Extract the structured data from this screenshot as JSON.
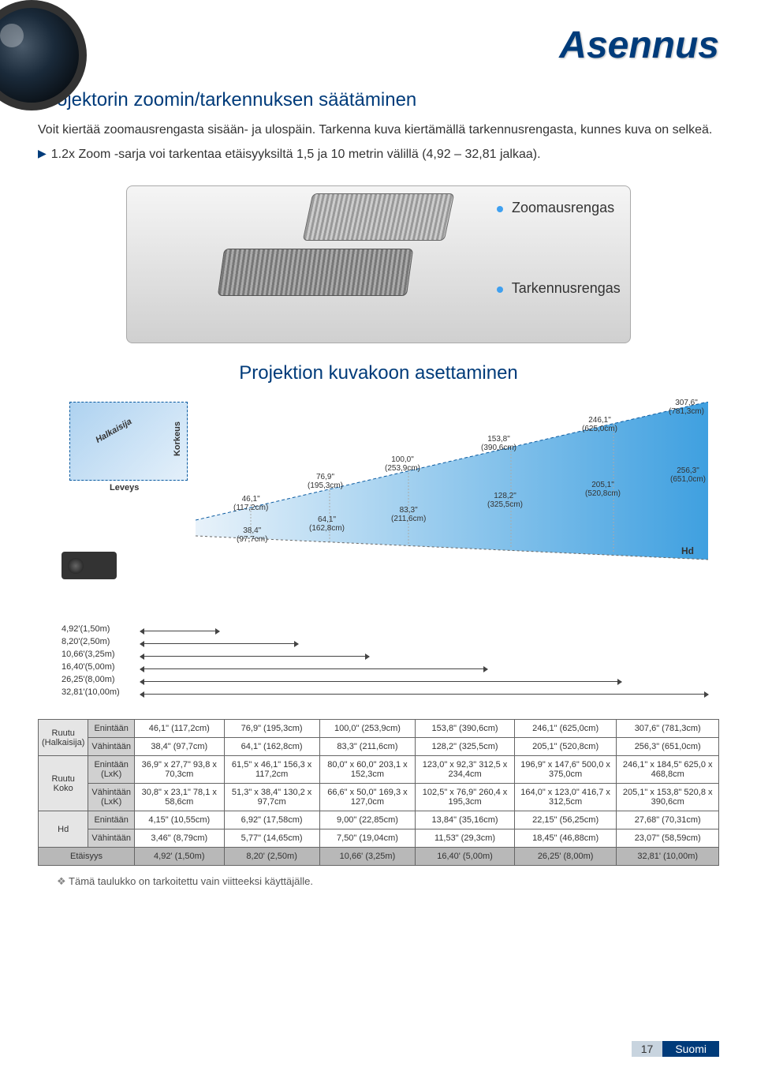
{
  "page": {
    "title": "Asennus",
    "subtitle": "Projektorin  zoomin/tarkennuksen säätäminen",
    "body": "Voit kiertää zoomausrengasta sisään- ja ulospäin. Tarkenna kuva kiertämällä tarkennusrengasta, kunnes kuva on selkeä.",
    "note": "1.2x Zoom -sarja voi tarkentaa etäisyyksiltä 1,5 ja 10 metrin välillä (4,92 – 32,81 jalkaa).",
    "zoom_label": "Zoomausrengas",
    "focus_label": "Tarkennusrengas",
    "section2": "Projektion kuvakoon asettaminen",
    "footnote": "Tämä taulukko on tarkoitettu vain viitteeksi käyttäjälle.",
    "page_num": "17",
    "lang": "Suomi"
  },
  "screen_labels": {
    "diag": "Halkaisija",
    "height": "Korkeus",
    "width": "Leveys",
    "hd": "Hd"
  },
  "beam_values": {
    "top": [
      {
        "v1": "46,1\"",
        "v2": "(117,2cm)"
      },
      {
        "v1": "76,9\"",
        "v2": "(195,3cm)"
      },
      {
        "v1": "100,0\"",
        "v2": "(253,9cm)"
      },
      {
        "v1": "153,8\"",
        "v2": "(390,6cm)"
      },
      {
        "v1": "246,1\"",
        "v2": "(625,0cm)"
      },
      {
        "v1": "307,6\"",
        "v2": "(781,3cm)"
      }
    ],
    "bottom": [
      {
        "v1": "38,4\"",
        "v2": "(97,7cm)"
      },
      {
        "v1": "64,1\"",
        "v2": "(162,8cm)"
      },
      {
        "v1": "83,3\"",
        "v2": "(211,6cm)"
      },
      {
        "v1": "128,2\"",
        "v2": "(325,5cm)"
      },
      {
        "v1": "205,1\"",
        "v2": "(520,8cm)"
      },
      {
        "v1": "256,3\"",
        "v2": "(651,0cm)"
      }
    ]
  },
  "distances": [
    {
      "label": "4,92'(1,50m)",
      "len": 100
    },
    {
      "label": "8,20'(2,50m)",
      "len": 200
    },
    {
      "label": "10,66'(3,25m)",
      "len": 290
    },
    {
      "label": "16,40'(5,00m)",
      "len": 440
    },
    {
      "label": "26,25'(8,00m)",
      "len": 610
    },
    {
      "label": "32,81'(10,00m)",
      "len": 720
    }
  ],
  "table": {
    "row_groups": [
      {
        "label": "Ruutu (Halkaisija)",
        "sub": [
          {
            "h": "Enintään",
            "cells": [
              "46,1\" (117,2cm)",
              "76,9\" (195,3cm)",
              "100,0\" (253,9cm)",
              "153,8\" (390,6cm)",
              "246,1\" (625,0cm)",
              "307,6\" (781,3cm)"
            ]
          },
          {
            "h": "Vähintään",
            "cells": [
              "38,4\" (97,7cm)",
              "64,1\" (162,8cm)",
              "83,3\" (211,6cm)",
              "128,2\" (325,5cm)",
              "205,1\" (520,8cm)",
              "256,3\" (651,0cm)"
            ]
          }
        ]
      },
      {
        "label": "Ruutu Koko",
        "sub": [
          {
            "h": "Enintään (LxK)",
            "cells": [
              "36,9\" x 27,7\" 93,8 x 70,3cm",
              "61,5\" x 46,1\" 156,3 x 117,2cm",
              "80,0\" x 60,0\" 203,1 x 152,3cm",
              "123,0\" x 92,3\" 312,5 x 234,4cm",
              "196,9\" x 147,6\" 500,0 x 375,0cm",
              "246,1\" x 184,5\" 625,0 x 468,8cm"
            ]
          },
          {
            "h": "Vähintään (LxK)",
            "cells": [
              "30,8\" x 23,1\" 78,1 x 58,6cm",
              "51,3\" x 38,4\" 130,2 x 97,7cm",
              "66,6\" x 50,0\" 169,3 x 127,0cm",
              "102,5\" x 76,9\" 260,4 x 195,3cm",
              "164,0\" x 123,0\" 416,7 x 312,5cm",
              "205,1\" x 153,8\" 520,8 x 390,6cm"
            ]
          }
        ]
      },
      {
        "label": "Hd",
        "sub": [
          {
            "h": "Enintään",
            "cells": [
              "4,15\" (10,55cm)",
              "6,92\" (17,58cm)",
              "9,00\" (22,85cm)",
              "13,84\" (35,16cm)",
              "22,15\" (56,25cm)",
              "27,68\" (70,31cm)"
            ]
          },
          {
            "h": "Vähintään",
            "cells": [
              "3,46\" (8,79cm)",
              "5,77\" (14,65cm)",
              "7,50\" (19,04cm)",
              "11,53\" (29,3cm)",
              "18,45\" (46,88cm)",
              "23,07\" (58,59cm)"
            ]
          }
        ]
      }
    ],
    "dist_row": {
      "label": "Etäisyys",
      "cells": [
        "4,92' (1,50m)",
        "8,20' (2,50m)",
        "10,66' (3,25m)",
        "16,40' (5,00m)",
        "26,25' (8,00m)",
        "32,81' (10,00m)"
      ]
    }
  },
  "colors": {
    "brand": "#003b7a",
    "beam_light": "#cfe6f5",
    "beam_dark": "#3fa0e0"
  }
}
